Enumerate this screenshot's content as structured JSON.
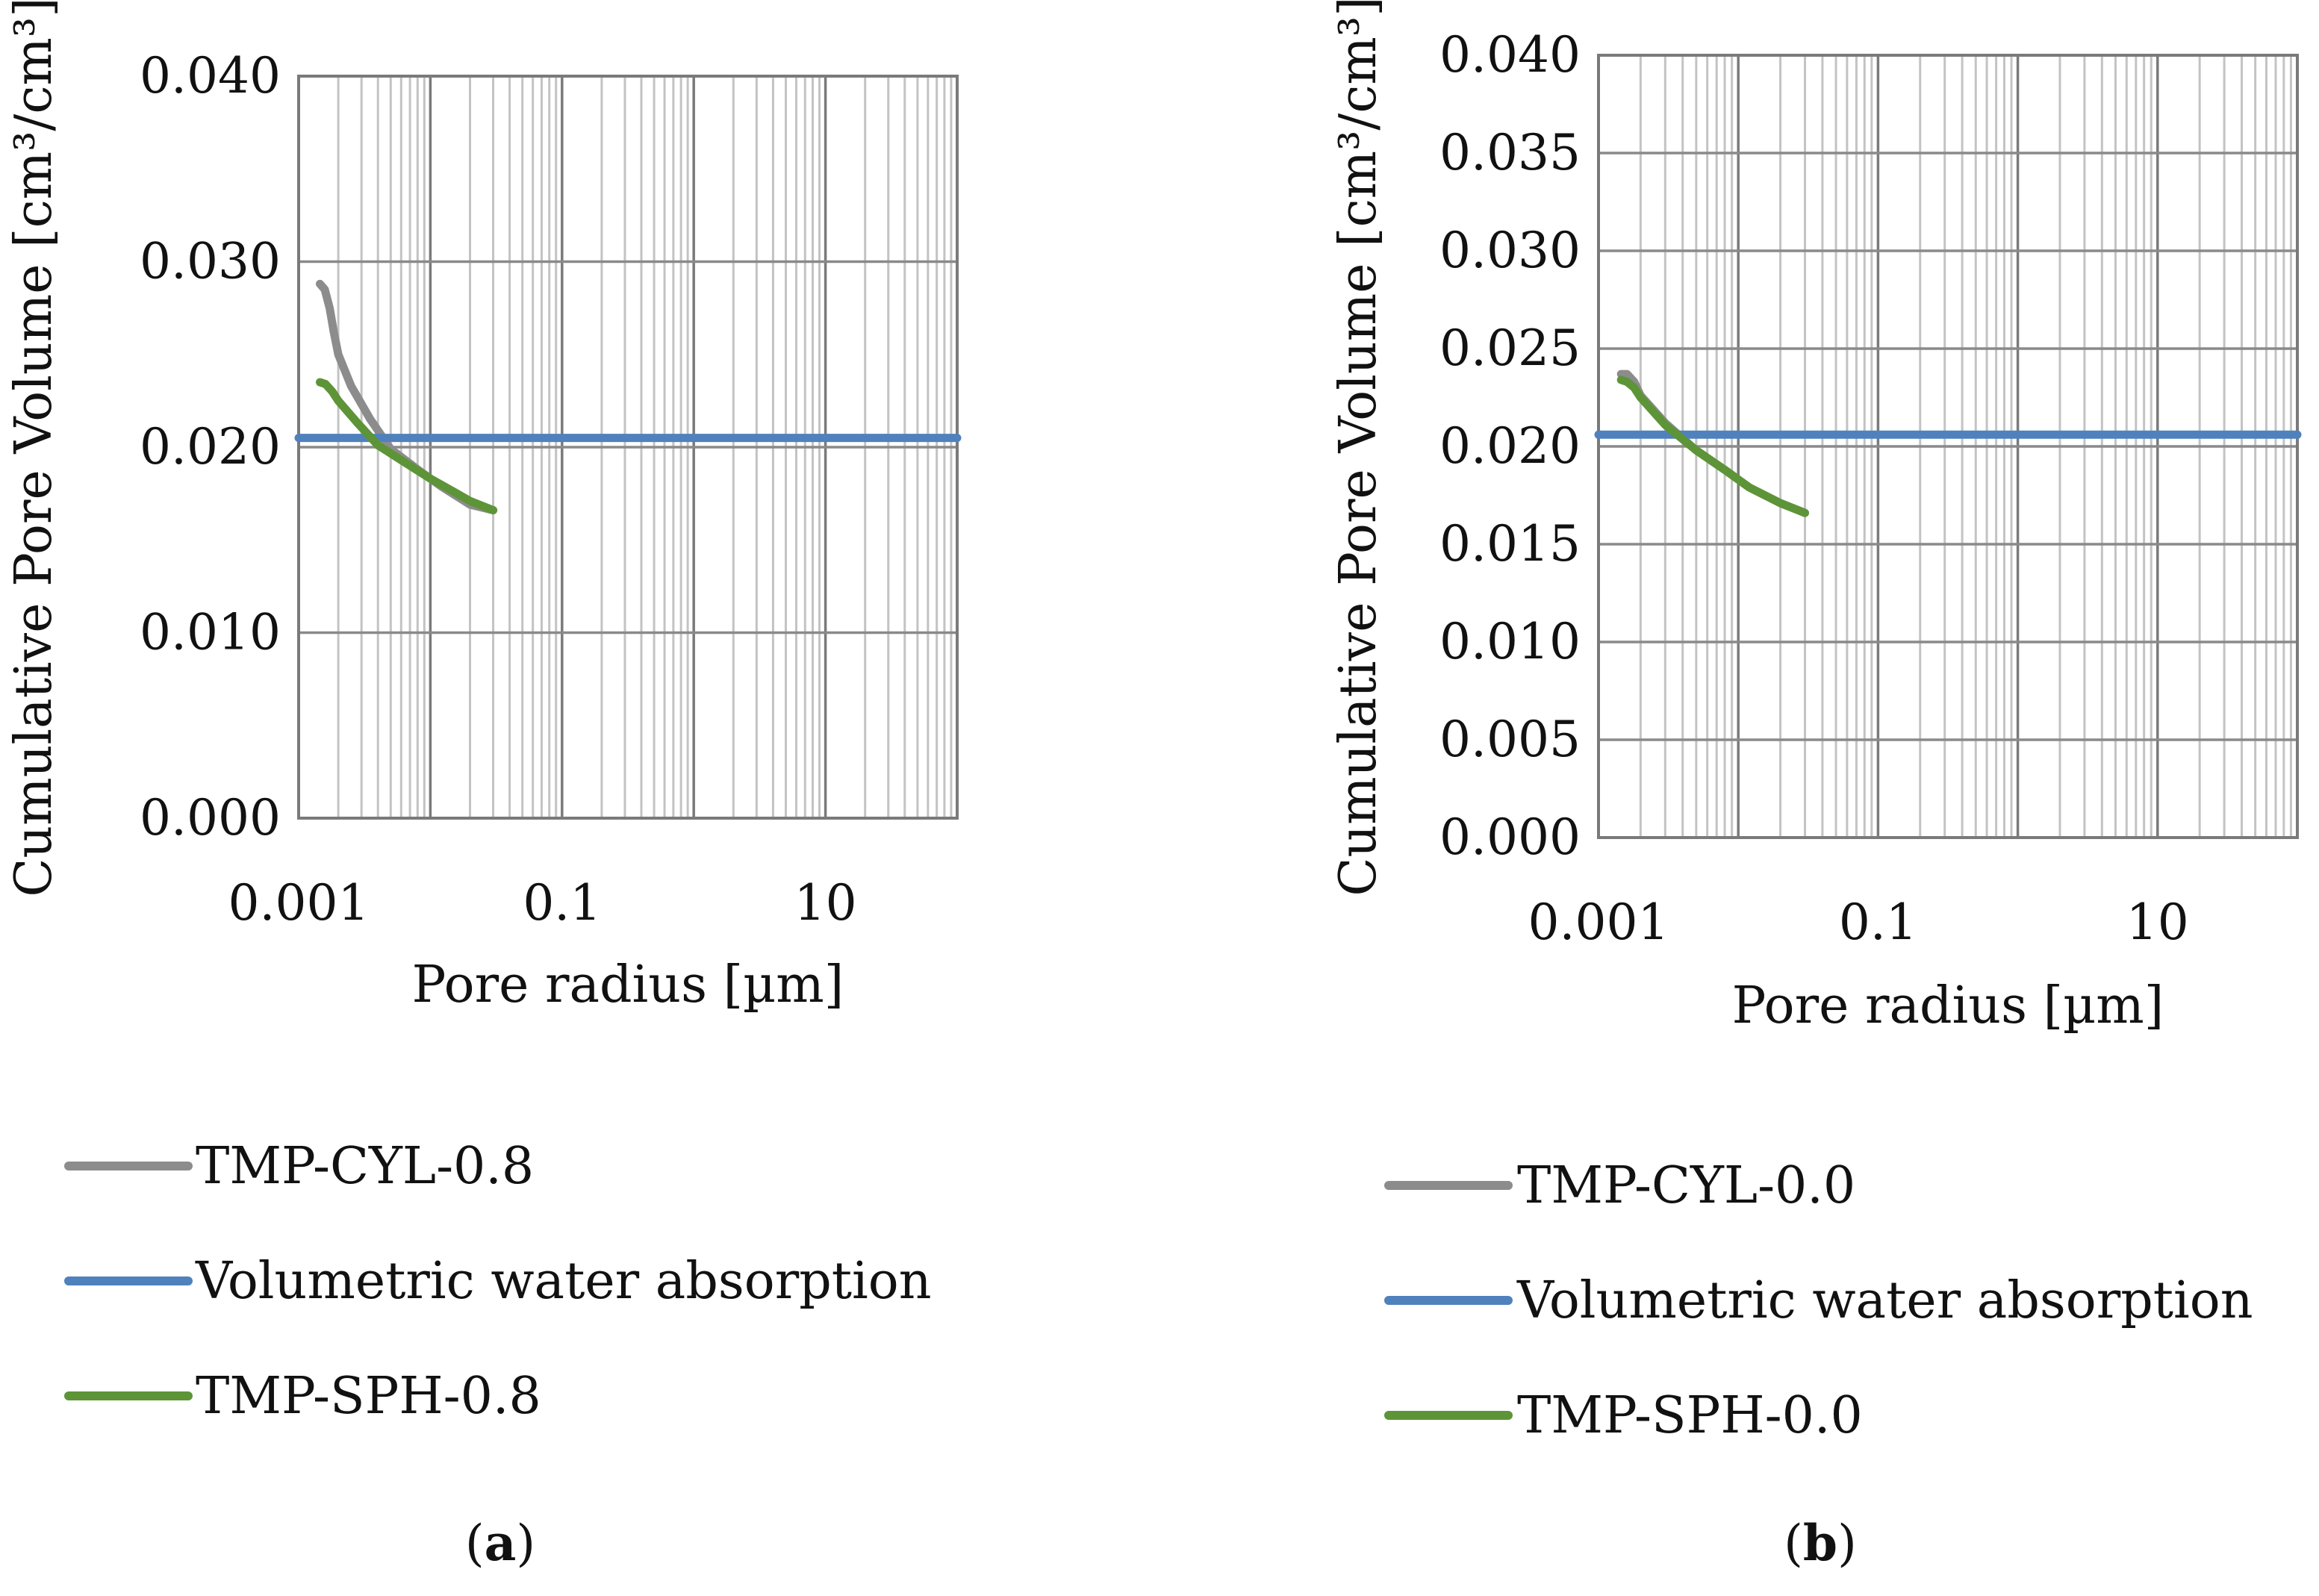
{
  "chart_data": [
    {
      "type": "line",
      "panel_label": "a",
      "xlabel": "Pore radius [µm]",
      "ylabel": "Cumulative Pore Volume [cm³/cm³]",
      "x_scale": "log",
      "xlim": [
        0.001,
        100
      ],
      "ylim": [
        0,
        0.04
      ],
      "x_tick_labels": [
        "0.001",
        "0.1",
        "10"
      ],
      "y_tick_labels": [
        "0.000",
        "0.010",
        "0.020",
        "0.030",
        "0.040"
      ],
      "grid": true,
      "legend_position": "bottom",
      "series": [
        {
          "name": "TMP-CYL-0.8",
          "color": "#8c8c8c",
          "points": [
            [
              0.00145,
              0.0288
            ],
            [
              0.00158,
              0.0285
            ],
            [
              0.00172,
              0.0275
            ],
            [
              0.00185,
              0.0262
            ],
            [
              0.002,
              0.025
            ],
            [
              0.0025,
              0.0233
            ],
            [
              0.0035,
              0.0215
            ],
            [
              0.005,
              0.0199
            ],
            [
              0.008,
              0.0188
            ],
            [
              0.012,
              0.0179
            ],
            [
              0.02,
              0.0169
            ],
            [
              0.03,
              0.0166
            ]
          ]
        },
        {
          "name": "Volumetric water absorption",
          "color": "#4f81bd",
          "points": [
            [
              0.001,
              0.0205
            ],
            [
              100,
              0.0205
            ]
          ]
        },
        {
          "name": "TMP-SPH-0.8",
          "color": "#5d9438",
          "points": [
            [
              0.00145,
              0.0235
            ],
            [
              0.0016,
              0.0234
            ],
            [
              0.0018,
              0.023
            ],
            [
              0.002,
              0.0225
            ],
            [
              0.0028,
              0.0213
            ],
            [
              0.004,
              0.0201
            ],
            [
              0.006,
              0.0193
            ],
            [
              0.01,
              0.0183
            ],
            [
              0.015,
              0.0176
            ],
            [
              0.02,
              0.0171
            ],
            [
              0.03,
              0.0166
            ]
          ]
        }
      ]
    },
    {
      "type": "line",
      "panel_label": "b",
      "xlabel": "Pore radius [µm]",
      "ylabel": "Cumulative Pore Volume [cm³/cm³]",
      "x_scale": "log",
      "xlim": [
        0.001,
        100
      ],
      "ylim": [
        0,
        0.04
      ],
      "x_tick_labels": [
        "0.001",
        "0.1",
        "10"
      ],
      "y_tick_labels": [
        "0.000",
        "0.005",
        "0.010",
        "0.015",
        "0.020",
        "0.025",
        "0.030",
        "0.035",
        "0.040"
      ],
      "grid": true,
      "legend_position": "bottom",
      "series": [
        {
          "name": "TMP-CYL-0.0",
          "color": "#8c8c8c",
          "points": [
            [
              0.00145,
              0.0237
            ],
            [
              0.0016,
              0.0237
            ],
            [
              0.0018,
              0.0233
            ],
            [
              0.002,
              0.0226
            ],
            [
              0.003,
              0.0212
            ],
            [
              0.005,
              0.0198
            ],
            [
              0.008,
              0.0188
            ],
            [
              0.012,
              0.0179
            ],
            [
              0.02,
              0.0171
            ],
            [
              0.03,
              0.0166
            ]
          ]
        },
        {
          "name": "Volumetric water absorption",
          "color": "#4f81bd",
          "points": [
            [
              0.001,
              0.0206
            ],
            [
              100,
              0.0206
            ]
          ]
        },
        {
          "name": "TMP-SPH-0.0",
          "color": "#5d9438",
          "points": [
            [
              0.00145,
              0.0234
            ],
            [
              0.0016,
              0.0233
            ],
            [
              0.0018,
              0.023
            ],
            [
              0.002,
              0.0225
            ],
            [
              0.003,
              0.0211
            ],
            [
              0.005,
              0.0198
            ],
            [
              0.008,
              0.0188
            ],
            [
              0.012,
              0.0179
            ],
            [
              0.02,
              0.0171
            ],
            [
              0.03,
              0.0166
            ]
          ]
        }
      ]
    }
  ]
}
